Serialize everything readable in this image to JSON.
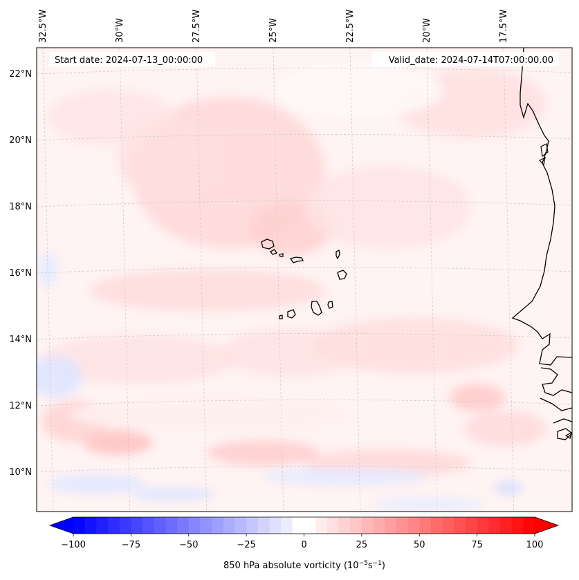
{
  "map": {
    "title_left": "Start date: 2024-07-13_00:00:00",
    "title_right": "Valid_date: 2024-07-14T07:00:00.00",
    "variable": "850 hPa absolute vorticity",
    "longitude_labels": [
      {
        "lon": -32.5,
        "label": "32.5°W"
      },
      {
        "lon": -30.0,
        "label": "30°W"
      },
      {
        "lon": -27.5,
        "label": "27.5°W"
      },
      {
        "lon": -25.0,
        "label": "25°W"
      },
      {
        "lon": -22.5,
        "label": "22.5°W"
      },
      {
        "lon": -20.0,
        "label": "20°W"
      },
      {
        "lon": -17.5,
        "label": "17.5°W"
      }
    ],
    "latitude_labels": [
      {
        "lat": 22,
        "label": "22°N"
      },
      {
        "lat": 20,
        "label": "20°N"
      },
      {
        "lat": 18,
        "label": "18°N"
      },
      {
        "lat": 16,
        "label": "16°N"
      },
      {
        "lat": 14,
        "label": "14°N"
      },
      {
        "lat": 12,
        "label": "12°N"
      },
      {
        "lat": 10,
        "label": "10°N"
      }
    ]
  },
  "colorbar": {
    "label_prefix": "850 hPa absolute vorticity (10",
    "label_exp1": "−5",
    "label_mid": "s",
    "label_exp2": "−1",
    "label_suffix": ")",
    "min": -100,
    "max": 100,
    "step": 5,
    "extend": "both",
    "ticks": [
      {
        "value": -100,
        "label": "−100"
      },
      {
        "value": -75,
        "label": "−75"
      },
      {
        "value": -50,
        "label": "−50"
      },
      {
        "value": -25,
        "label": "−25"
      },
      {
        "value": 0,
        "label": "0"
      },
      {
        "value": 25,
        "label": "25"
      },
      {
        "value": 50,
        "label": "50"
      },
      {
        "value": 75,
        "label": "75"
      },
      {
        "value": 100,
        "label": "100"
      }
    ]
  },
  "colors": {
    "negative_max": "#0000ff",
    "positive_max": "#ff0000",
    "background_field": "#fff5f5",
    "coastline": "#000000",
    "gridline": "#c8c8c8"
  }
}
